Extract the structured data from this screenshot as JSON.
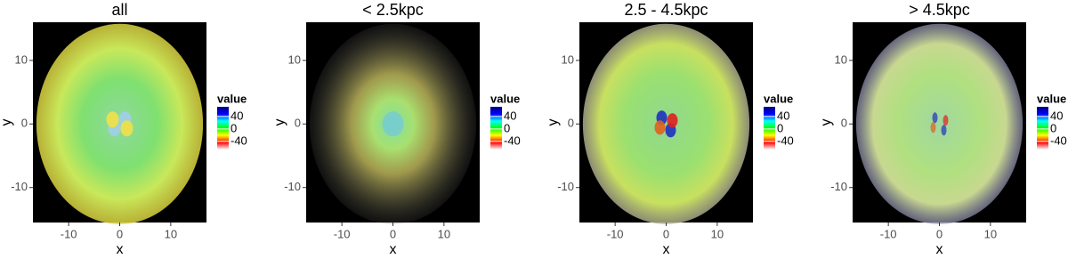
{
  "chart_data": [
    {
      "type": "heatmap",
      "title": "all",
      "xlabel": "x",
      "ylabel": "y",
      "xlim": [
        -17,
        17
      ],
      "ylim": [
        -15.5,
        16
      ],
      "xticks": [
        -10,
        0,
        10
      ],
      "yticks": [
        -10,
        0,
        10
      ],
      "legend_title": "value",
      "colorbar_lim": [
        -66,
        71
      ],
      "colorbar_ticks": [
        40,
        0,
        -40
      ],
      "colorscale": [
        "#ffffff",
        "#ff0000",
        "#ffff00",
        "#00ff00",
        "#00ffff",
        "#0000ff",
        "#000080"
      ]
    },
    {
      "type": "heatmap",
      "title": "< 2.5kpc",
      "xlabel": "x",
      "ylabel": "y",
      "xlim": [
        -17,
        17
      ],
      "ylim": [
        -15.5,
        16
      ],
      "xticks": [
        -10,
        0,
        10
      ],
      "yticks": [
        -10,
        0,
        10
      ],
      "legend_title": "value",
      "colorbar_lim": [
        -66,
        71
      ],
      "colorbar_ticks": [
        40,
        0,
        -40
      ],
      "colorscale": [
        "#ffffff",
        "#ff0000",
        "#ffff00",
        "#00ff00",
        "#00ffff",
        "#0000ff",
        "#000080"
      ]
    },
    {
      "type": "heatmap",
      "title": "2.5 - 4.5kpc",
      "xlabel": "x",
      "ylabel": "y",
      "xlim": [
        -17,
        17
      ],
      "ylim": [
        -15.5,
        16
      ],
      "xticks": [
        -10,
        0,
        10
      ],
      "yticks": [
        -10,
        0,
        10
      ],
      "legend_title": "value",
      "colorbar_lim": [
        -66,
        71
      ],
      "colorbar_ticks": [
        40,
        0,
        -40
      ],
      "colorscale": [
        "#ffffff",
        "#ff0000",
        "#ffff00",
        "#00ff00",
        "#00ffff",
        "#0000ff",
        "#000080"
      ]
    },
    {
      "type": "heatmap",
      "title": "> 4.5kpc",
      "xlabel": "x",
      "ylabel": "y",
      "xlim": [
        -17,
        17
      ],
      "ylim": [
        -15.5,
        16
      ],
      "xticks": [
        -10,
        0,
        10
      ],
      "yticks": [
        -10,
        0,
        10
      ],
      "legend_title": "value",
      "colorbar_lim": [
        -66,
        71
      ],
      "colorbar_ticks": [
        40,
        0,
        -40
      ],
      "colorscale": [
        "#ffffff",
        "#ff0000",
        "#ffff00",
        "#00ff00",
        "#00ffff",
        "#0000ff",
        "#000080"
      ]
    }
  ]
}
